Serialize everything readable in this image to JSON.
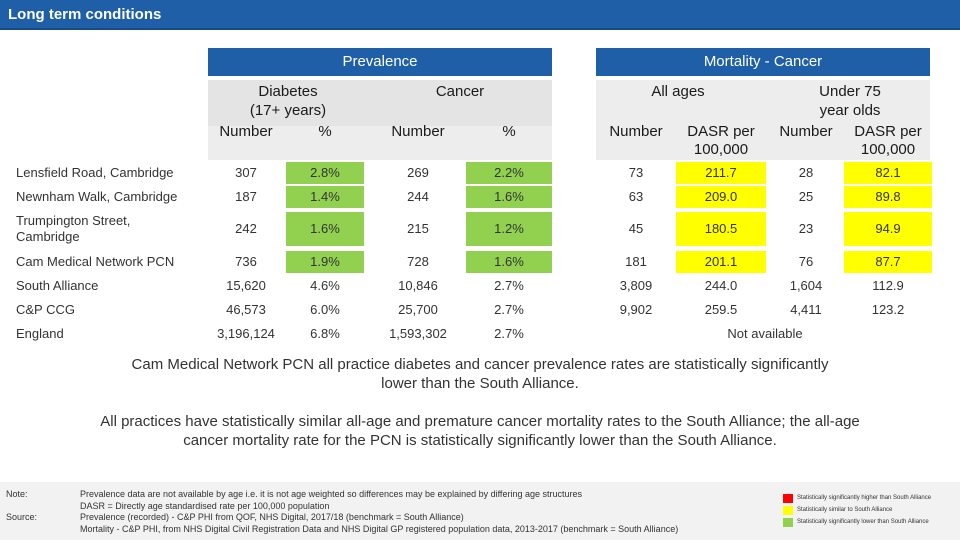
{
  "title": "Long term conditions",
  "headers": {
    "prevalence": "Prevalence",
    "mortality": "Mortality - Cancer",
    "diabetes_l1": "Diabetes",
    "diabetes_l2": "(17+ years)",
    "cancer": "Cancer",
    "all_ages": "All ages",
    "under75_l1": "Under 75",
    "under75_l2": "year olds",
    "number": "Number",
    "percent": "%",
    "dasr_l1": "DASR per",
    "dasr_l2": "100,000"
  },
  "rows": [
    {
      "label": "Lensfield Road, Cambridge",
      "diab_n": "307",
      "diab_p": "2.8%",
      "canc_n": "269",
      "canc_p": "2.2%",
      "all_n": "73",
      "all_dasr": "211.7",
      "u75_n": "28",
      "u75_dasr": "82.1"
    },
    {
      "label": "Newnham Walk, Cambridge",
      "diab_n": "187",
      "diab_p": "1.4%",
      "canc_n": "244",
      "canc_p": "1.6%",
      "all_n": "63",
      "all_dasr": "209.0",
      "u75_n": "25",
      "u75_dasr": "89.8"
    },
    {
      "label_l1": "Trumpington Street,",
      "label_l2": "Cambridge",
      "diab_n": "242",
      "diab_p": "1.6%",
      "canc_n": "215",
      "canc_p": "1.2%",
      "all_n": "45",
      "all_dasr": "180.5",
      "u75_n": "23",
      "u75_dasr": "94.9"
    },
    {
      "label": "Cam Medical Network PCN",
      "diab_n": "736",
      "diab_p": "1.9%",
      "canc_n": "728",
      "canc_p": "1.6%",
      "all_n": "181",
      "all_dasr": "201.1",
      "u75_n": "76",
      "u75_dasr": "87.7"
    },
    {
      "label": "South Alliance",
      "diab_n": "15,620",
      "diab_p": "4.6%",
      "canc_n": "10,846",
      "canc_p": "2.7%",
      "all_n": "3,809",
      "all_dasr": "244.0",
      "u75_n": "1,604",
      "u75_dasr": "112.9"
    },
    {
      "label": "C&P CCG",
      "diab_n": "46,573",
      "diab_p": "6.0%",
      "canc_n": "25,700",
      "canc_p": "2.7%",
      "all_n": "9,902",
      "all_dasr": "259.5",
      "u75_n": "4,411",
      "u75_dasr": "123.2"
    },
    {
      "label": "England",
      "diab_n": "3,196,124",
      "diab_p": "6.8%",
      "canc_n": "1,593,302",
      "canc_p": "2.7%",
      "not_available": "Not available"
    }
  ],
  "summary1_l1": "Cam Medical Network PCN all practice diabetes and cancer prevalence rates are statistically significantly",
  "summary1_l2": "lower than the South Alliance.",
  "summary2_l1": "All practices have statistically similar all-age and premature cancer mortality rates to the South Alliance; the all-age",
  "summary2_l2": "cancer mortality rate for the PCN is statistically significantly lower than the South Alliance.",
  "footer": {
    "note_label": "Note:",
    "source_label": "Source:",
    "note1": "Prevalence data are not available by age i.e. it is not age weighted so differences may be explained by differing age structures",
    "note2": "DASR = Directly age standardised rate per 100,000 population",
    "source1": "Prevalence (recorded) - C&P PHI from QOF, NHS Digital, 2017/18 (benchmark = South Alliance)",
    "source2": "Mortality - C&P PHI, from NHS Digital Civil Registration Data and NHS Digital GP registered population data, 2013-2017 (benchmark = South Alliance)"
  },
  "legend": [
    {
      "label": "Statistically significantly higher than South Alliance",
      "color": "#ff0000"
    },
    {
      "label": "Statistically similar to South Alliance",
      "color": "#ffff00"
    },
    {
      "label": "Statistically significantly lower than South Alliance",
      "color": "#92d050"
    }
  ],
  "colors": {
    "brand": "#1f5fa8",
    "green": "#92d050",
    "yellow": "#ffff00",
    "band": "#ededed"
  }
}
